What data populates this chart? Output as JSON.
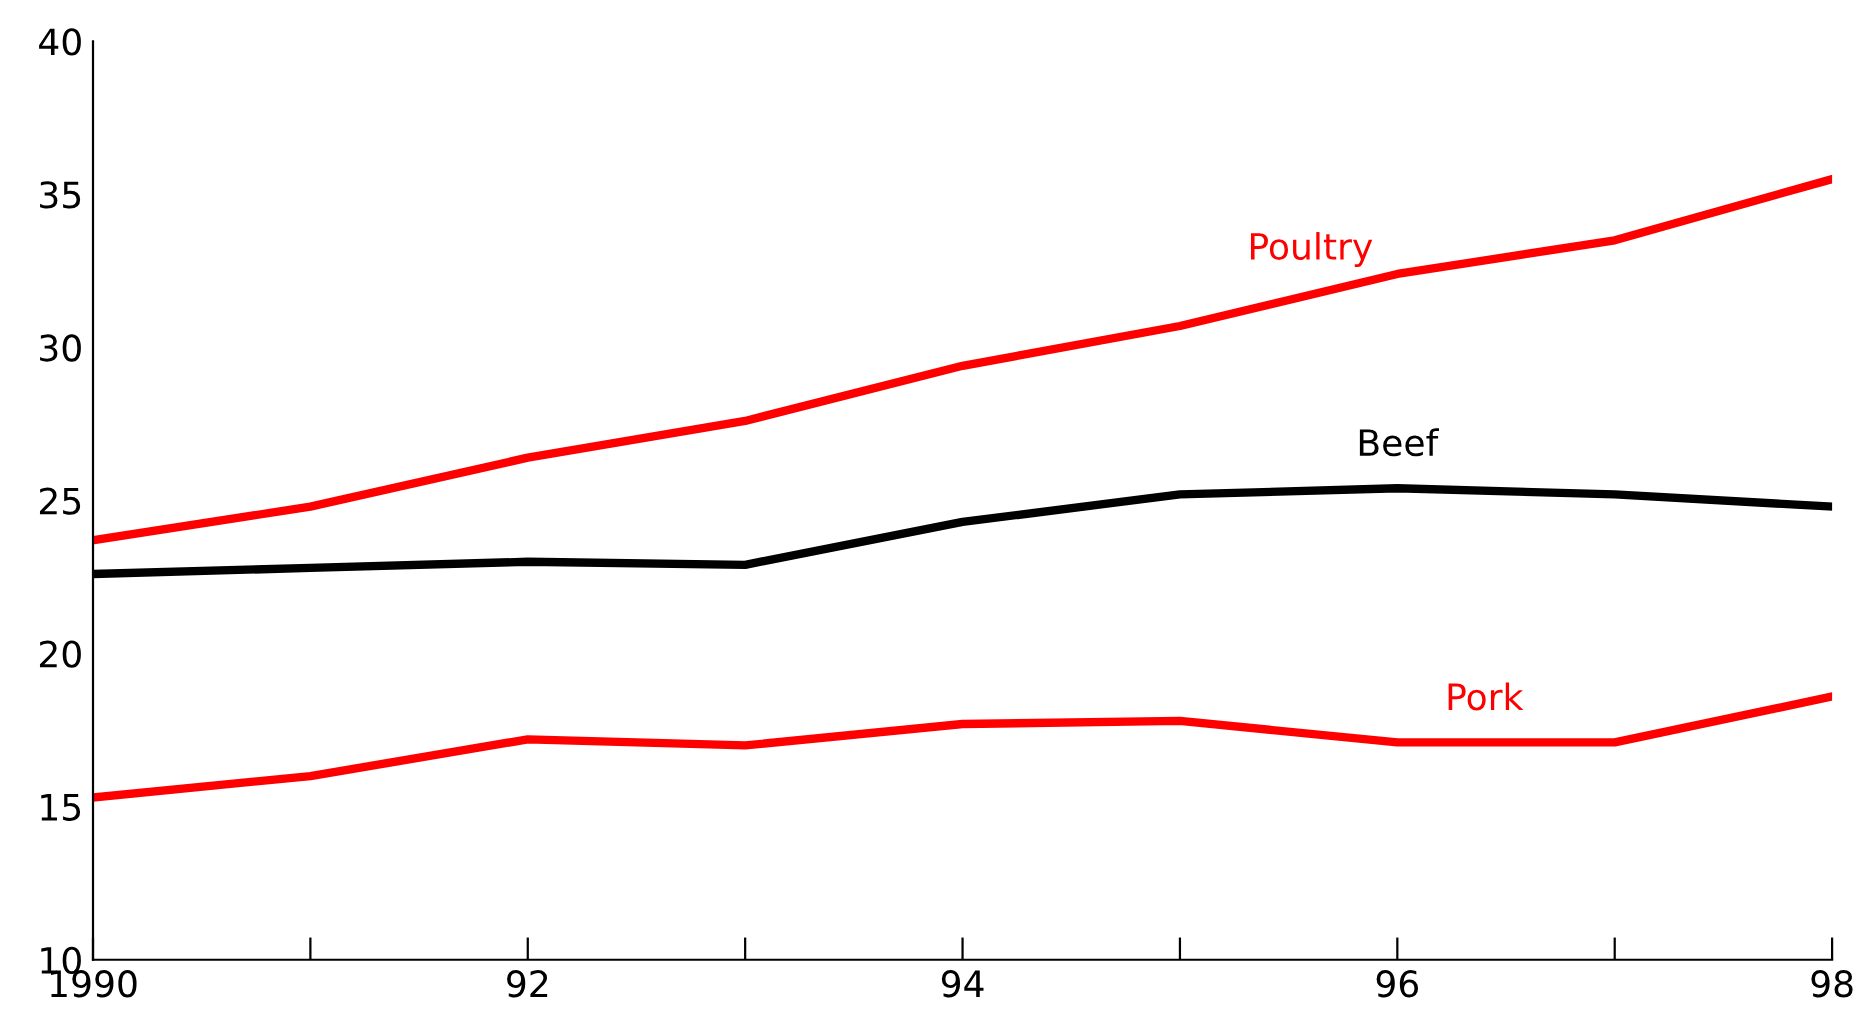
{
  "chart_data": {
    "type": "line",
    "x": [
      1990,
      1991,
      1992,
      1993,
      1994,
      1995,
      1996,
      1997,
      1998
    ],
    "series": [
      {
        "name": "Poultry",
        "color": "#ff0000",
        "values": [
          23.7,
          24.8,
          26.4,
          27.6,
          29.4,
          30.7,
          32.4,
          33.5,
          35.5
        ]
      },
      {
        "name": "Beef",
        "color": "#000000",
        "values": [
          22.6,
          22.8,
          23.0,
          22.9,
          24.3,
          25.2,
          25.4,
          25.2,
          24.8
        ]
      },
      {
        "name": "Pork",
        "color": "#ff0000",
        "values": [
          15.3,
          16.0,
          17.2,
          17.0,
          17.7,
          17.8,
          17.1,
          17.1,
          18.6
        ]
      }
    ],
    "xlim": [
      1990,
      1998
    ],
    "ylim": [
      10,
      40
    ],
    "xticks": [
      1990,
      {
        "value": 1991,
        "label": null
      },
      {
        "value": 1992,
        "label": "92"
      },
      {
        "value": 1993,
        "label": null
      },
      {
        "value": 1994,
        "label": "94"
      },
      {
        "value": 1995,
        "label": null
      },
      {
        "value": 1996,
        "label": "96"
      },
      {
        "value": 1997,
        "label": null
      },
      {
        "value": 1998,
        "label": "98"
      }
    ],
    "yticks": [
      10,
      15,
      20,
      25,
      30,
      35,
      40
    ],
    "grid": false,
    "legend": false,
    "marker": "none",
    "line_style": "solid"
  }
}
